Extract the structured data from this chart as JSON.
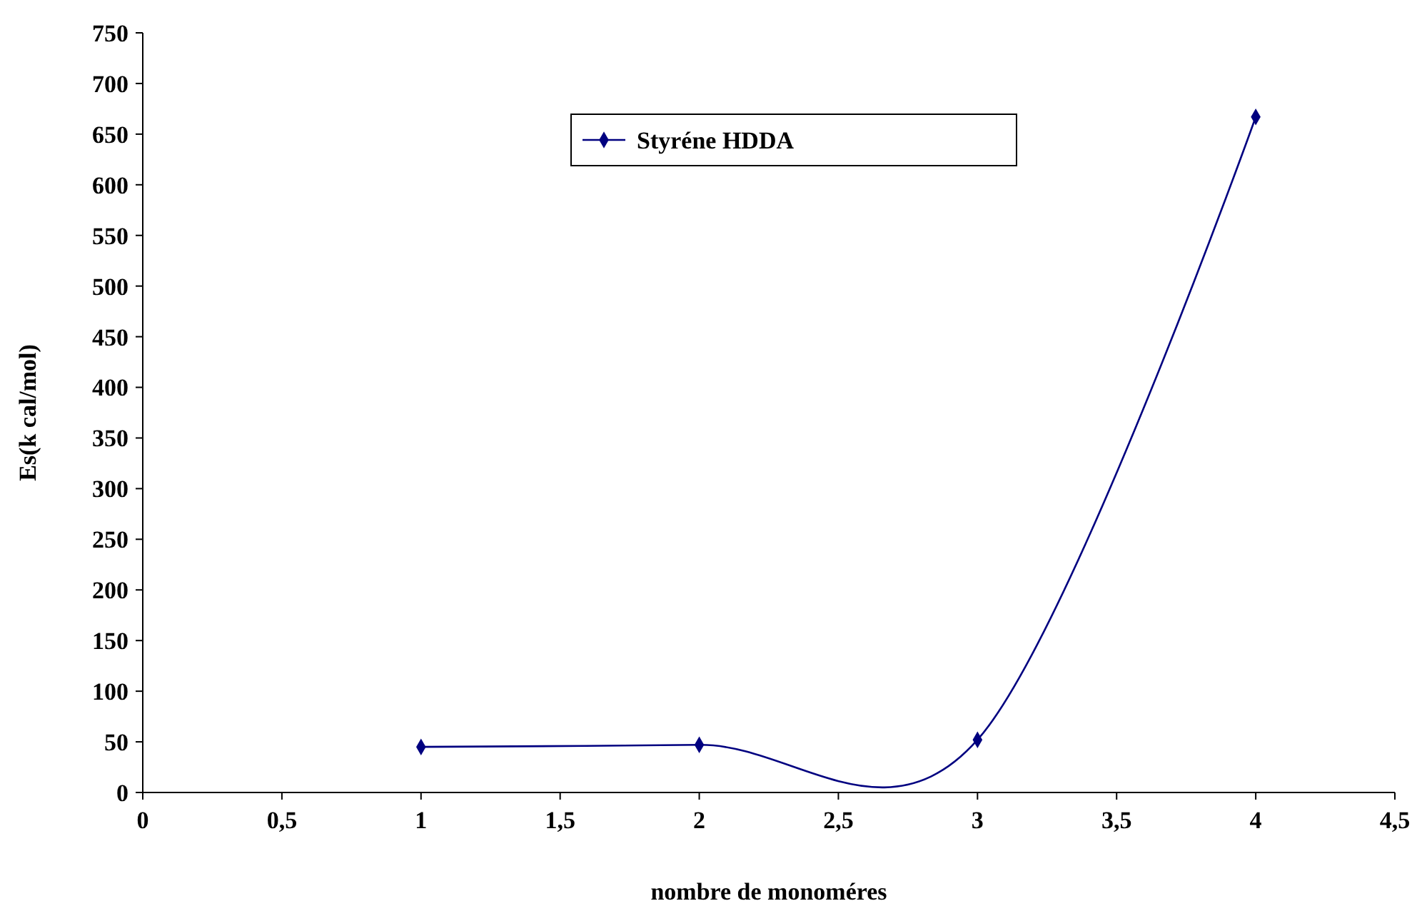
{
  "chart_data": {
    "type": "line",
    "xlabel": "nombre de monoméres",
    "ylabel": "Es(k cal/mol)",
    "x": [
      1,
      2,
      3,
      4
    ],
    "series": [
      {
        "name": "Styréne HDDA",
        "color": "#000080",
        "values": [
          45,
          47,
          52,
          667
        ]
      }
    ],
    "xlim": [
      0,
      4.5
    ],
    "xticks": [
      0,
      {
        "value": 0.5,
        "label": "0,5"
      },
      1,
      {
        "value": 1.5,
        "label": "1,5"
      },
      2,
      {
        "value": 2.5,
        "label": "2,5"
      },
      3,
      {
        "value": 3.5,
        "label": "3,5"
      },
      4,
      {
        "value": 4.5,
        "label": "4,5"
      }
    ],
    "ylim": [
      0,
      750
    ],
    "yticks": [
      0,
      50,
      100,
      150,
      200,
      250,
      300,
      350,
      400,
      450,
      500,
      550,
      600,
      650,
      700,
      750
    ],
    "grid": false,
    "legend": "top",
    "marker": "diamond",
    "line_style": "solid"
  }
}
